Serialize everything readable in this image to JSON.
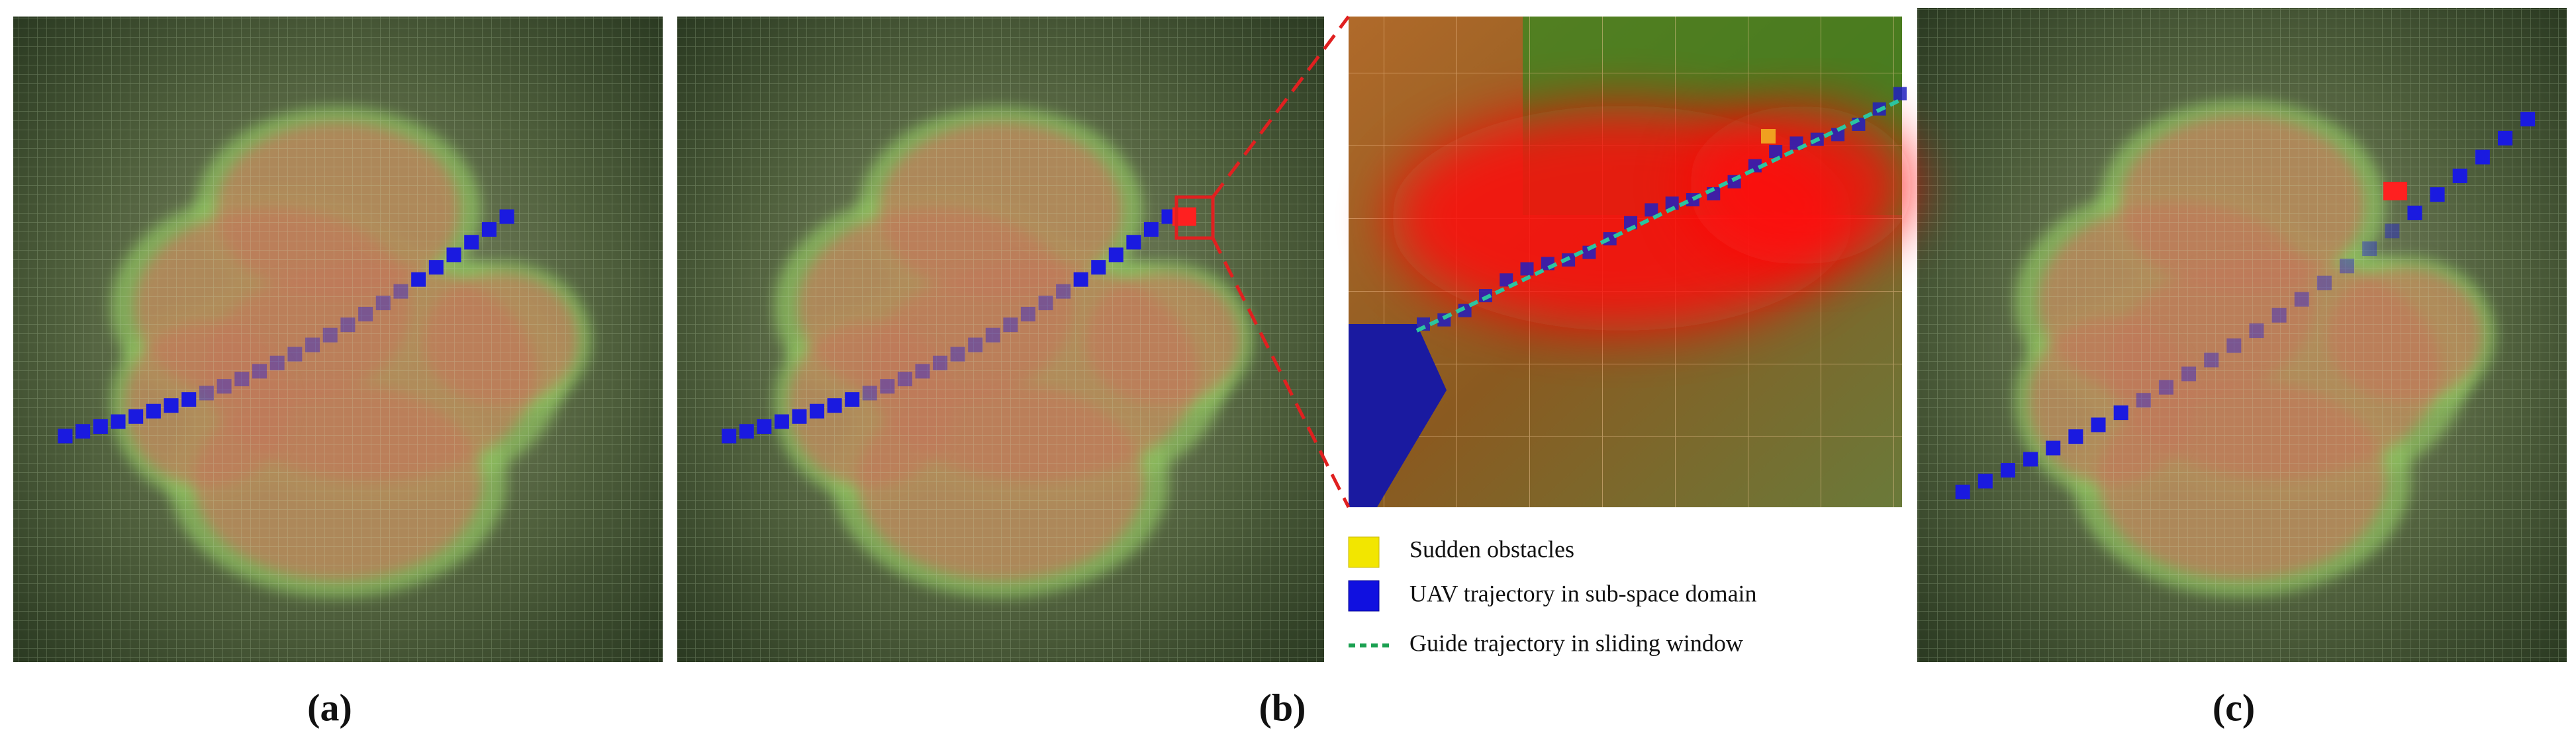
{
  "panels": [
    {
      "label": "(a)"
    },
    {
      "label": "(b)"
    },
    {
      "label": "(c)"
    }
  ],
  "legend": [
    {
      "text": "Sudden obstacles"
    },
    {
      "text": "UAV trajectory in sub-space domain"
    },
    {
      "text": "Guide trajectory in sliding window"
    }
  ]
}
